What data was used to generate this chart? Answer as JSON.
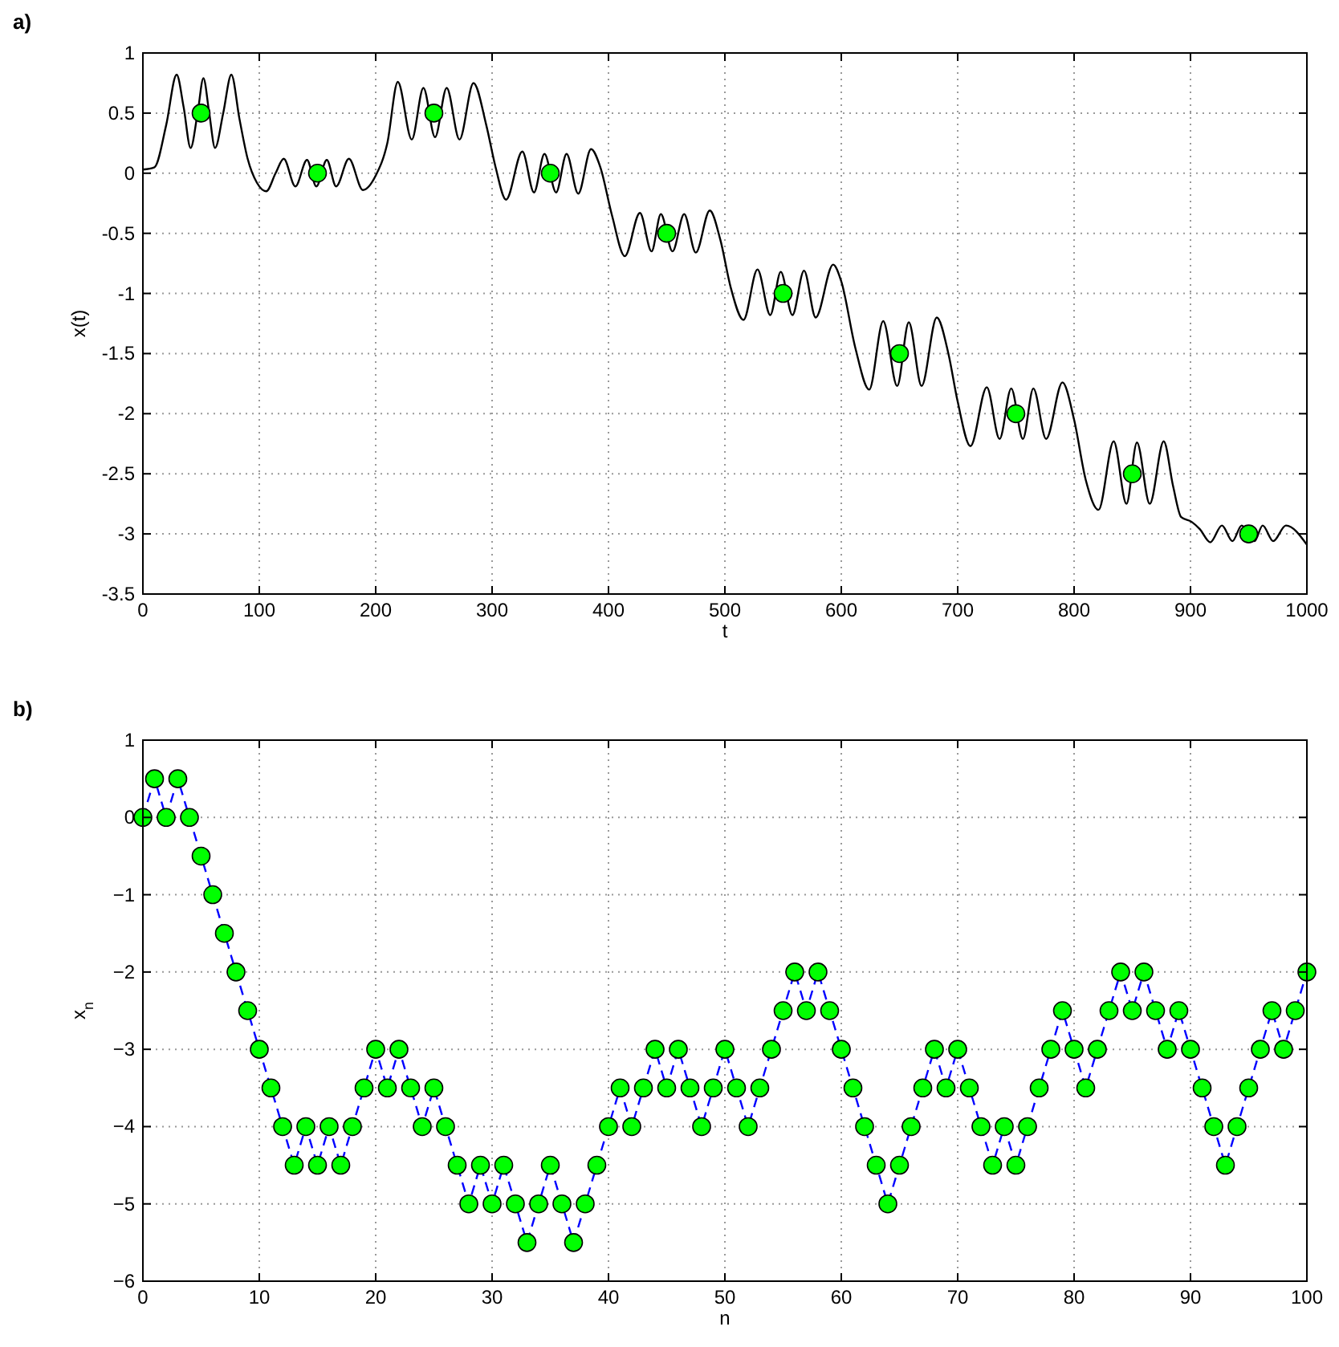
{
  "chart_data": [
    {
      "type": "line",
      "title": "a)",
      "xlabel": "t",
      "ylabel": "x(t)",
      "xlim": [
        0,
        1000
      ],
      "ylim": [
        -3.5,
        1
      ],
      "xticks": [
        0,
        100,
        200,
        300,
        400,
        500,
        600,
        700,
        800,
        900,
        1000
      ],
      "yticks": [
        1,
        0.5,
        0,
        -0.5,
        -1,
        -1.5,
        -2,
        -2.5,
        -3,
        -3.5
      ],
      "grid": true,
      "series": [
        {
          "type": "line",
          "color": "#000000",
          "line_style": "solid",
          "x": [
            0,
            10,
            20,
            29,
            35,
            41,
            47,
            52,
            57,
            62,
            69,
            76,
            83,
            90,
            98,
            106,
            114,
            121,
            131,
            141,
            149,
            158,
            166,
            177,
            189,
            200,
            210,
            219,
            231,
            241,
            251,
            261,
            272,
            284,
            295,
            303,
            312,
            326,
            336,
            345,
            355,
            364,
            374,
            385,
            393,
            403,
            414,
            427,
            437,
            445,
            455,
            465,
            475,
            487,
            496,
            505,
            516,
            528,
            539,
            548,
            558,
            568,
            578,
            593,
            600,
            612,
            624,
            636,
            648,
            658,
            669,
            682,
            692,
            700,
            711,
            725,
            736,
            746,
            756,
            765,
            776,
            790,
            800,
            810,
            821,
            834,
            845,
            854,
            865,
            877,
            885,
            892,
            901,
            908,
            917,
            927,
            936,
            944,
            955,
            962,
            971,
            982,
            1000
          ],
          "values": [
            0.03,
            0.05,
            0.4,
            0.82,
            0.55,
            0.21,
            0.5,
            0.79,
            0.5,
            0.21,
            0.5,
            0.82,
            0.45,
            0.12,
            -0.08,
            -0.15,
            0.0,
            0.12,
            -0.11,
            0.11,
            -0.11,
            0.11,
            -0.11,
            0.12,
            -0.14,
            -0.02,
            0.25,
            0.76,
            0.28,
            0.71,
            0.3,
            0.71,
            0.28,
            0.75,
            0.4,
            0.05,
            -0.22,
            0.18,
            -0.16,
            0.16,
            -0.16,
            0.16,
            -0.17,
            0.2,
            0.05,
            -0.35,
            -0.69,
            -0.33,
            -0.65,
            -0.34,
            -0.65,
            -0.34,
            -0.66,
            -0.31,
            -0.55,
            -0.95,
            -1.22,
            -0.8,
            -1.18,
            -0.82,
            -1.18,
            -0.81,
            -1.2,
            -0.76,
            -0.9,
            -1.45,
            -1.8,
            -1.23,
            -1.77,
            -1.24,
            -1.77,
            -1.2,
            -1.5,
            -1.9,
            -2.27,
            -1.78,
            -2.21,
            -1.79,
            -2.21,
            -1.79,
            -2.21,
            -1.74,
            -2.05,
            -2.55,
            -2.8,
            -2.23,
            -2.75,
            -2.24,
            -2.75,
            -2.23,
            -2.6,
            -2.86,
            -2.9,
            -2.96,
            -3.07,
            -2.93,
            -3.06,
            -2.93,
            -3.06,
            -2.93,
            -3.06,
            -2.93,
            -3.09
          ]
        },
        {
          "type": "scatter",
          "color": "#00ff00",
          "marker": "circle",
          "x": [
            50,
            150,
            250,
            350,
            450,
            550,
            650,
            750,
            850,
            950
          ],
          "values": [
            0.5,
            0,
            0.5,
            0,
            -0.5,
            -1,
            -1.5,
            -2,
            -2.5,
            -3
          ]
        }
      ]
    },
    {
      "type": "line",
      "title": "b)",
      "xlabel": "n",
      "ylabel": "x$_{n}$",
      "xlim": [
        0,
        100
      ],
      "ylim": [
        -6,
        1
      ],
      "xticks": [
        0,
        10,
        20,
        30,
        40,
        50,
        60,
        70,
        80,
        90,
        100
      ],
      "yticks": [
        1,
        0,
        {
          "value": -1,
          "label": "−1"
        },
        {
          "value": -2,
          "label": "−2"
        },
        {
          "value": -3,
          "label": "−3"
        },
        {
          "value": -4,
          "label": "−4"
        },
        {
          "value": -5,
          "label": "−5"
        },
        {
          "value": -6,
          "label": "−6"
        }
      ],
      "grid": true,
      "x": [
        0,
        1,
        2,
        3,
        4,
        5,
        6,
        7,
        8,
        9,
        10,
        11,
        12,
        13,
        14,
        15,
        16,
        17,
        18,
        19,
        20,
        21,
        22,
        23,
        24,
        25,
        26,
        27,
        28,
        29,
        30,
        31,
        32,
        33,
        34,
        35,
        36,
        37,
        38,
        39,
        40,
        41,
        42,
        43,
        44,
        45,
        46,
        47,
        48,
        49,
        50,
        51,
        52,
        53,
        54,
        55,
        56,
        57,
        58,
        59,
        60,
        61,
        62,
        63,
        64,
        65,
        66,
        67,
        68,
        69,
        70,
        71,
        72,
        73,
        74,
        75,
        76,
        77,
        78,
        79,
        80,
        81,
        82,
        83,
        84,
        85,
        86,
        87,
        88,
        89,
        90,
        91,
        92,
        93,
        94,
        95,
        96,
        97,
        98,
        99,
        100
      ],
      "series": [
        {
          "type": "line",
          "color": "#0000ff",
          "line_style": "dashed",
          "values": [
            0,
            0.5,
            0,
            0.5,
            0,
            -0.5,
            -1,
            -1.5,
            -2,
            -2.5,
            -3,
            -3.5,
            -4,
            -4.5,
            -4,
            -4.5,
            -4,
            -4.5,
            -4,
            -3.5,
            -3,
            -3.5,
            -3,
            -3.5,
            -4,
            -3.5,
            -4,
            -4.5,
            -5,
            -4.5,
            -5,
            -4.5,
            -5,
            -5.5,
            -5,
            -4.5,
            -5,
            -5.5,
            -5,
            -4.5,
            -4,
            -3.5,
            -4,
            -3.5,
            -3,
            -3.5,
            -3,
            -3.5,
            -4,
            -3.5,
            -3,
            -3.5,
            -4,
            -3.5,
            -3,
            -2.5,
            -2,
            -2.5,
            -2,
            -2.5,
            -3,
            -3.5,
            -4,
            -4.5,
            -5,
            -4.5,
            -4,
            -3.5,
            -3,
            -3.5,
            -3,
            -3.5,
            -4,
            -4.5,
            -4,
            -4.5,
            -4,
            -3.5,
            -3,
            -2.5,
            -3,
            -3.5,
            -3,
            -2.5,
            -2,
            -2.5,
            -2,
            -2.5,
            -3,
            -2.5,
            -3,
            -3.5,
            -4,
            -4.5,
            -4,
            -3.5,
            -3,
            -2.5,
            -3,
            -2.5,
            -2
          ]
        },
        {
          "type": "scatter",
          "color": "#00ff00",
          "marker": "circle",
          "values": [
            0,
            0.5,
            0,
            0.5,
            0,
            -0.5,
            -1,
            -1.5,
            -2,
            -2.5,
            -3,
            -3.5,
            -4,
            -4.5,
            -4,
            -4.5,
            -4,
            -4.5,
            -4,
            -3.5,
            -3,
            -3.5,
            -3,
            -3.5,
            -4,
            -3.5,
            -4,
            -4.5,
            -5,
            -4.5,
            -5,
            -4.5,
            -5,
            -5.5,
            -5,
            -4.5,
            -5,
            -5.5,
            -5,
            -4.5,
            -4,
            -3.5,
            -4,
            -3.5,
            -3,
            -3.5,
            -3,
            -3.5,
            -4,
            -3.5,
            -3,
            -3.5,
            -4,
            -3.5,
            -3,
            -2.5,
            -2,
            -2.5,
            -2,
            -2.5,
            -3,
            -3.5,
            -4,
            -4.5,
            -5,
            -4.5,
            -4,
            -3.5,
            -3,
            -3.5,
            -3,
            -3.5,
            -4,
            -4.5,
            -4,
            -4.5,
            -4,
            -3.5,
            -3,
            -2.5,
            -3,
            -3.5,
            -3,
            -2.5,
            -2,
            -2.5,
            -2,
            -2.5,
            -3,
            -2.5,
            -3,
            -3.5,
            -4,
            -4.5,
            -4,
            -3.5,
            -3,
            -2.5,
            -3,
            -2.5,
            -2
          ]
        }
      ]
    }
  ]
}
